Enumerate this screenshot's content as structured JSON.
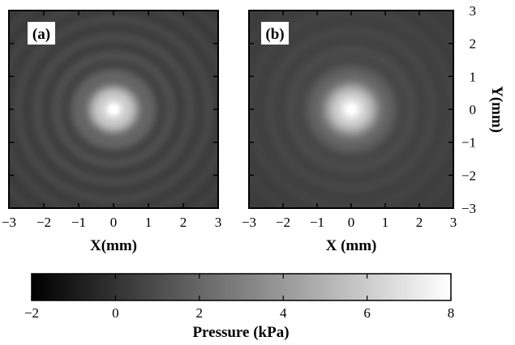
{
  "chart_data": [
    {
      "type": "heatmap",
      "panel_label": "(a)",
      "xlabel": "X(mm)",
      "ylabel": "",
      "xlim": [
        -3,
        3
      ],
      "ylim": [
        -3,
        3
      ],
      "x_ticks": [
        "−3",
        "−2",
        "−1",
        "0",
        "1",
        "2",
        "3"
      ],
      "y_ticks": [],
      "field": {
        "peak": 8,
        "background": 1,
        "core_sigma_mm": 0.5,
        "ring_amplitude": 0.45,
        "ring_spacing_mm": 0.55
      }
    },
    {
      "type": "heatmap",
      "panel_label": "(b)",
      "xlabel": "X (mm)",
      "ylabel": "Y(mm)",
      "xlim": [
        -3,
        3
      ],
      "ylim": [
        -3,
        3
      ],
      "x_ticks": [
        "−3",
        "−2",
        "−1",
        "0",
        "1",
        "2",
        "3"
      ],
      "y_ticks": [
        "3",
        "2",
        "1",
        "0",
        "−1",
        "−2",
        "−3"
      ],
      "field": {
        "peak": 8,
        "background": 1,
        "core_sigma_mm": 0.55,
        "ring_amplitude": 0.25,
        "ring_spacing_mm": 0.6
      }
    }
  ],
  "colorbar": {
    "label": "Pressure (kPa)",
    "range": [
      -2,
      8
    ],
    "tick_values": [
      -2,
      0,
      2,
      4,
      6,
      8
    ],
    "tick_labels": [
      "−2",
      "0",
      "2",
      "4",
      "6",
      "8"
    ],
    "colormap": "gray"
  }
}
